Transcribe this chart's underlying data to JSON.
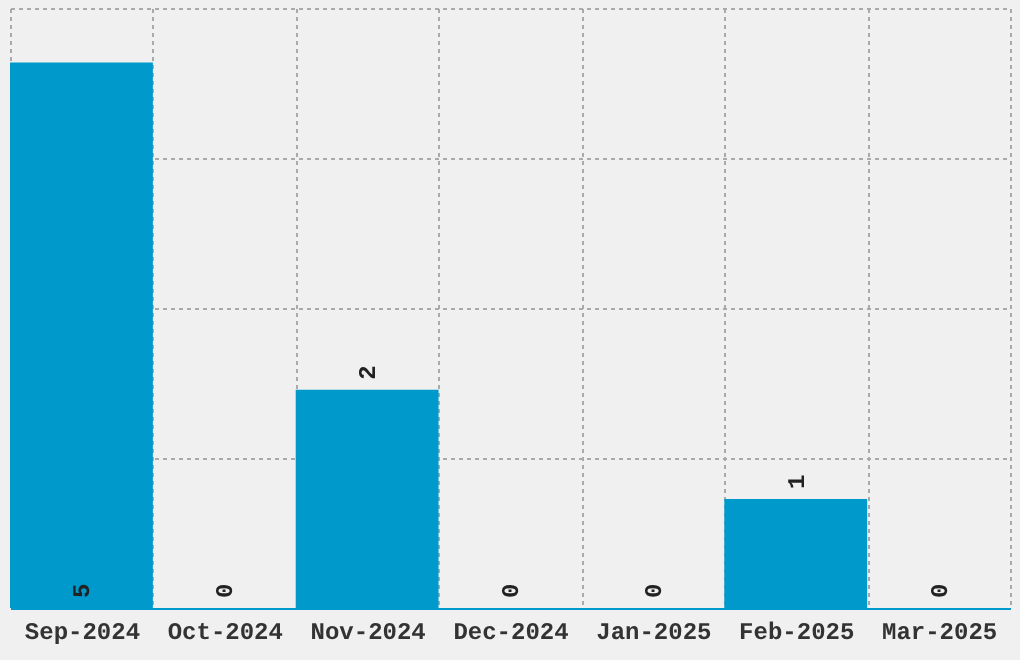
{
  "chart_data": {
    "type": "bar",
    "categories": [
      "Sep-2024",
      "Oct-2024",
      "Nov-2024",
      "Dec-2024",
      "Jan-2025",
      "Feb-2025",
      "Mar-2025"
    ],
    "values": [
      5,
      0,
      2,
      0,
      0,
      1,
      0
    ],
    "color": "#0099cc",
    "ylim": [
      0,
      5.5
    ],
    "yticks": [
      {
        "value": 0,
        "label": null
      },
      {
        "value": 1.375,
        "label": null
      },
      {
        "value": 2.75,
        "label": null
      },
      {
        "value": 4.125,
        "label": null
      },
      {
        "value": 5.5,
        "label": null
      }
    ],
    "grid": true,
    "data_labels": true,
    "tick_labels": "x"
  }
}
